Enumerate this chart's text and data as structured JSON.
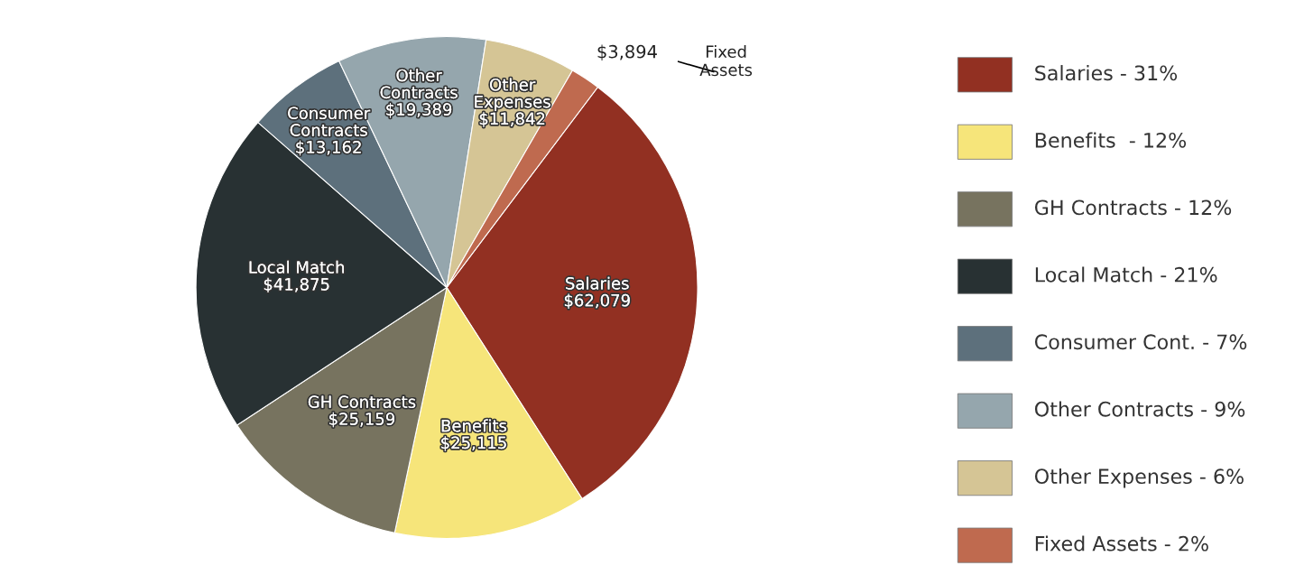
{
  "chart_data": {
    "type": "pie",
    "categories": [
      "Salaries - 31%",
      "Benefits  - 12%",
      "GH Contracts - 12%",
      "Local Match - 21%",
      "Consumer Cont. - 7%",
      "Other Contracts - 9%",
      "Other Expenses - 6%",
      "Fixed Assets - 2%"
    ],
    "values": [
      62079,
      25115,
      25159,
      41875,
      13162,
      19389,
      11842,
      3894
    ],
    "colors": [
      "#923022",
      "#f6e57a",
      "#77735f",
      "#283133",
      "#5d707c",
      "#95a6ad",
      "#d5c595",
      "#bf6a4f"
    ],
    "value_labels": [
      "Salaries\n$62,079",
      "Benefits\n$25,115",
      "GH Contracts\n$25,159",
      "Local Match\n$41,875",
      "Consumer\nContracts\n$13,162",
      "Other\nContracts\n$19,389",
      "Other\nExpenses\n$11,842",
      "$3,894"
    ],
    "annotations": [
      "Fixed\nAssets"
    ],
    "legend": "right"
  }
}
